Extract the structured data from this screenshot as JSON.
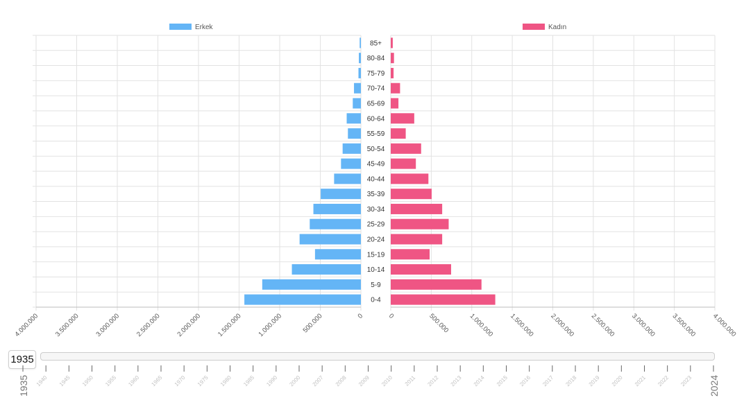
{
  "chart_data": {
    "type": "bar",
    "orientation": "horizontal",
    "layout": "population-pyramid",
    "categories": [
      "85+",
      "80-84",
      "75-79",
      "70-74",
      "65-69",
      "60-64",
      "55-59",
      "50-54",
      "45-49",
      "40-44",
      "35-39",
      "30-34",
      "25-29",
      "20-24",
      "15-19",
      "10-14",
      "5-9",
      "0-4"
    ],
    "series": [
      {
        "name": "Erkek",
        "color": "#64b5f6",
        "side": "left",
        "values": [
          15000,
          25000,
          30000,
          85000,
          100000,
          175000,
          160000,
          225000,
          245000,
          330000,
          495000,
          585000,
          630000,
          755000,
          565000,
          850000,
          1215000,
          1435000
        ]
      },
      {
        "name": "Kadın",
        "color": "#ef5584",
        "side": "right",
        "values": [
          25000,
          40000,
          35000,
          115000,
          95000,
          290000,
          185000,
          375000,
          310000,
          465000,
          505000,
          635000,
          715000,
          635000,
          480000,
          745000,
          1120000,
          1290000
        ]
      }
    ],
    "xlim": [
      0,
      4000000
    ],
    "x_ticks": [
      "0",
      "500.000",
      "1.000.000",
      "1.500.000",
      "2.000.000",
      "2.500.000",
      "3.000.000",
      "3.500.000",
      "4.000.000"
    ],
    "grid": true,
    "legend": "top"
  },
  "timeline": {
    "current_year": "1935",
    "start_year": "1935",
    "end_year": "2024",
    "ticks": [
      "1940",
      "1945",
      "1950",
      "1955",
      "1960",
      "1965",
      "1970",
      "1975",
      "1980",
      "1985",
      "1990",
      "2000",
      "2007",
      "2008",
      "2009",
      "2010",
      "2011",
      "2012",
      "2013",
      "2014",
      "2015",
      "2016",
      "2017",
      "2018",
      "2019",
      "2020",
      "2021",
      "2022",
      "2023"
    ]
  }
}
